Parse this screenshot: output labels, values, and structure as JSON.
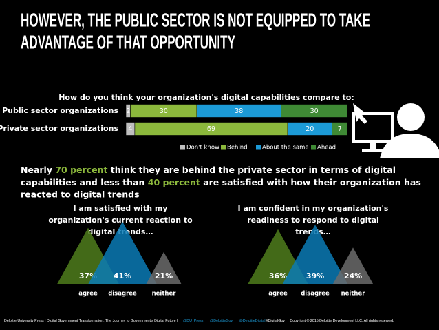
{
  "title": [
    "HOWEVER, THE PUBLIC SECTOR IS NOT EQUIPPED TO TAKE",
    "ADVANTAGE OF THAT OPPORTUNITY"
  ],
  "summary": [
    "Nearly ",
    "70 percent",
    " think they are behind the private sector in terms of digital",
    "capabilities and less than ",
    "40 percent",
    " are satisfied with how their organization has",
    "reacted  to digital trends"
  ],
  "footer": {
    "text": "Deloitte University Press | Digital Government Transformation: The Journey to Government's Digital Future |",
    "handles": [
      "@DU_Press",
      "@DeloitteGov",
      "@DeloitteDigital"
    ],
    "hashtag": "#DigitalGov",
    "copyright": "Copyright © 2015 Deloitte Development LLC. All rights reserved."
  },
  "chart_data": [
    {
      "type": "stacked_bar",
      "title": "How do you think your organization's digital capabilities compare to:",
      "categories": [
        "Public sector organizations",
        "Private sector organizations"
      ],
      "xlim": [
        0,
        100
      ],
      "series": [
        {
          "name": "Don't know",
          "color": "#bfbfbf",
          "values": [
            2,
            4
          ]
        },
        {
          "name": "Behind",
          "color": "#8cb83c",
          "values": [
            30,
            69
          ]
        },
        {
          "name": "About the same",
          "color": "#1c9ad6",
          "values": [
            38,
            20
          ]
        },
        {
          "name": "Ahead",
          "color": "#3f8a35",
          "values": [
            30,
            7
          ]
        }
      ]
    },
    {
      "type": "triangle",
      "title": [
        "I am satisfied with my",
        "organization's current reaction to",
        "digital trends…"
      ],
      "categories": [
        "agree",
        "disagree",
        "neither"
      ],
      "values": [
        37,
        41,
        21
      ],
      "value_labels": [
        "37%",
        "41%",
        "21%"
      ],
      "colors": [
        "#4f7d1c",
        "#0b7ab5",
        "#6b6b6b"
      ]
    },
    {
      "type": "triangle",
      "title": [
        "I am confident in my organization's",
        "readiness to respond to digital",
        "trends…"
      ],
      "categories": [
        "agree",
        "disagree",
        "neither"
      ],
      "values": [
        36,
        39,
        24
      ],
      "value_labels": [
        "36%",
        "39%",
        "24%"
      ],
      "colors": [
        "#4f7d1c",
        "#0b7ab5",
        "#6b6b6b"
      ]
    }
  ]
}
